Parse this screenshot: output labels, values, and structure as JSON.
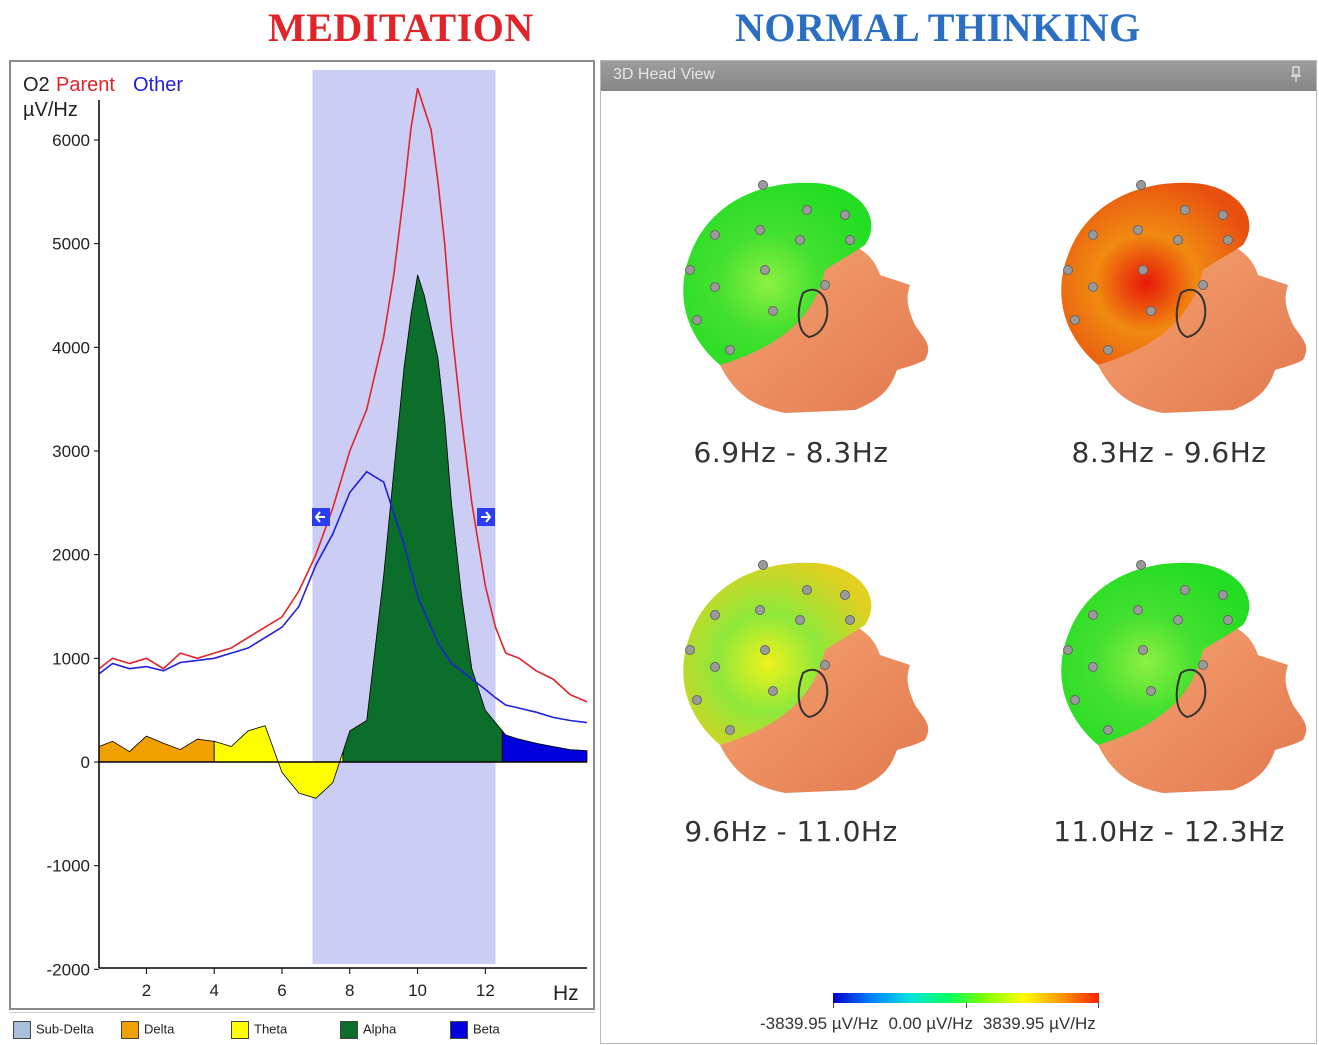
{
  "banners": {
    "left": "MEDITATION",
    "right": "NORMAL THINKING"
  },
  "spectrum": {
    "channel_label": "O2",
    "parent_label": "Parent",
    "other_label": "Other",
    "unit_label": "µV/Hz",
    "x_unit": "Hz",
    "y_ticks": [
      "6000",
      "5000",
      "4000",
      "3000",
      "2000",
      "1000",
      "0",
      "-1000",
      "-2000"
    ],
    "x_ticks": [
      "2",
      "4",
      "6",
      "8",
      "10",
      "12"
    ],
    "colors": {
      "parent": "#e0242a",
      "other": "#2020dd",
      "selection": "#cccdf5"
    }
  },
  "chart_data": {
    "type": "line",
    "xlabel": "Hz",
    "ylabel": "µV/Hz",
    "xlim": [
      0.6,
      15.0
    ],
    "ylim": [
      -2000,
      6500
    ],
    "selection_range_hz": [
      6.9,
      12.3
    ],
    "series": [
      {
        "name": "Parent",
        "x": [
          0.6,
          1,
          1.5,
          2,
          2.5,
          3,
          3.5,
          4,
          4.5,
          5,
          5.5,
          6,
          6.5,
          7,
          7.5,
          8,
          8.5,
          9,
          9.3,
          9.6,
          9.8,
          10,
          10.2,
          10.4,
          10.6,
          10.8,
          11,
          11.3,
          11.6,
          12,
          12.3,
          12.6,
          13,
          13.5,
          14,
          14.5,
          15
        ],
        "y": [
          900,
          1000,
          950,
          1000,
          900,
          1050,
          1000,
          1050,
          1100,
          1200,
          1300,
          1400,
          1650,
          2000,
          2450,
          3000,
          3400,
          4100,
          4700,
          5500,
          6100,
          6500,
          6300,
          6100,
          5600,
          5000,
          4200,
          3300,
          2500,
          1700,
          1300,
          1050,
          1000,
          880,
          800,
          650,
          580
        ]
      },
      {
        "name": "Other",
        "x": [
          0.6,
          1,
          1.5,
          2,
          2.5,
          3,
          3.5,
          4,
          4.5,
          5,
          5.5,
          6,
          6.5,
          7,
          7.5,
          8,
          8.5,
          9,
          9.3,
          9.6,
          9.8,
          10,
          10.2,
          10.4,
          10.6,
          10.8,
          11,
          11.3,
          11.6,
          12,
          12.3,
          12.6,
          13,
          13.5,
          14,
          14.5,
          15
        ],
        "y": [
          850,
          950,
          900,
          920,
          880,
          960,
          980,
          1000,
          1050,
          1100,
          1200,
          1300,
          1500,
          1900,
          2200,
          2600,
          2800,
          2700,
          2400,
          2100,
          1850,
          1600,
          1450,
          1300,
          1150,
          1050,
          950,
          880,
          800,
          700,
          620,
          550,
          520,
          480,
          430,
          400,
          380
        ]
      },
      {
        "name": "Difference",
        "x": [
          0.6,
          1,
          1.5,
          2,
          2.5,
          3,
          3.5,
          4,
          4.5,
          5,
          5.5,
          6,
          6.5,
          7,
          7.5,
          8,
          8.5,
          9,
          9.3,
          9.6,
          9.8,
          10,
          10.2,
          10.4,
          10.6,
          10.8,
          11,
          11.3,
          11.6,
          12,
          12.3,
          12.6,
          13,
          13.5,
          14,
          14.5,
          15
        ],
        "y": [
          150,
          200,
          100,
          250,
          180,
          120,
          220,
          200,
          150,
          300,
          350,
          -100,
          -300,
          -350,
          -200,
          300,
          400,
          1800,
          2800,
          3800,
          4300,
          4700,
          4500,
          4200,
          3900,
          3300,
          2500,
          1600,
          900,
          500,
          380,
          260,
          220,
          180,
          150,
          120,
          110
        ]
      }
    ],
    "bands": [
      {
        "name": "Delta",
        "from_hz": 0.6,
        "to_hz": 4.0,
        "color": "#f0a000"
      },
      {
        "name": "Theta",
        "from_hz": 4.0,
        "to_hz": 7.8,
        "color": "#ffff00"
      },
      {
        "name": "Alpha",
        "from_hz": 7.8,
        "to_hz": 12.5,
        "color": "#0b6e2a"
      },
      {
        "name": "Beta",
        "from_hz": 12.5,
        "to_hz": 15.0,
        "color": "#0000dd"
      }
    ]
  },
  "legend": [
    {
      "label": "Sub-Delta",
      "color": "#a9c0dc"
    },
    {
      "label": "Delta",
      "color": "#f0a000"
    },
    {
      "label": "Theta",
      "color": "#ffff00"
    },
    {
      "label": "Alpha",
      "color": "#0b6e2a"
    },
    {
      "label": "Beta",
      "color": "#0000dd"
    }
  ],
  "head_view": {
    "title": "3D Head View",
    "maps": [
      {
        "range": "6.9Hz - 8.3Hz",
        "mode": "green"
      },
      {
        "range": "8.3Hz - 9.6Hz",
        "mode": "red"
      },
      {
        "range": "9.6Hz - 11.0Hz",
        "mode": "yellow"
      },
      {
        "range": "11.0Hz - 12.3Hz",
        "mode": "green"
      }
    ],
    "colorbar": {
      "min": "-3839.95 µV/Hz",
      "mid": "0.00 µV/Hz",
      "max": "3839.95 µV/Hz"
    }
  }
}
